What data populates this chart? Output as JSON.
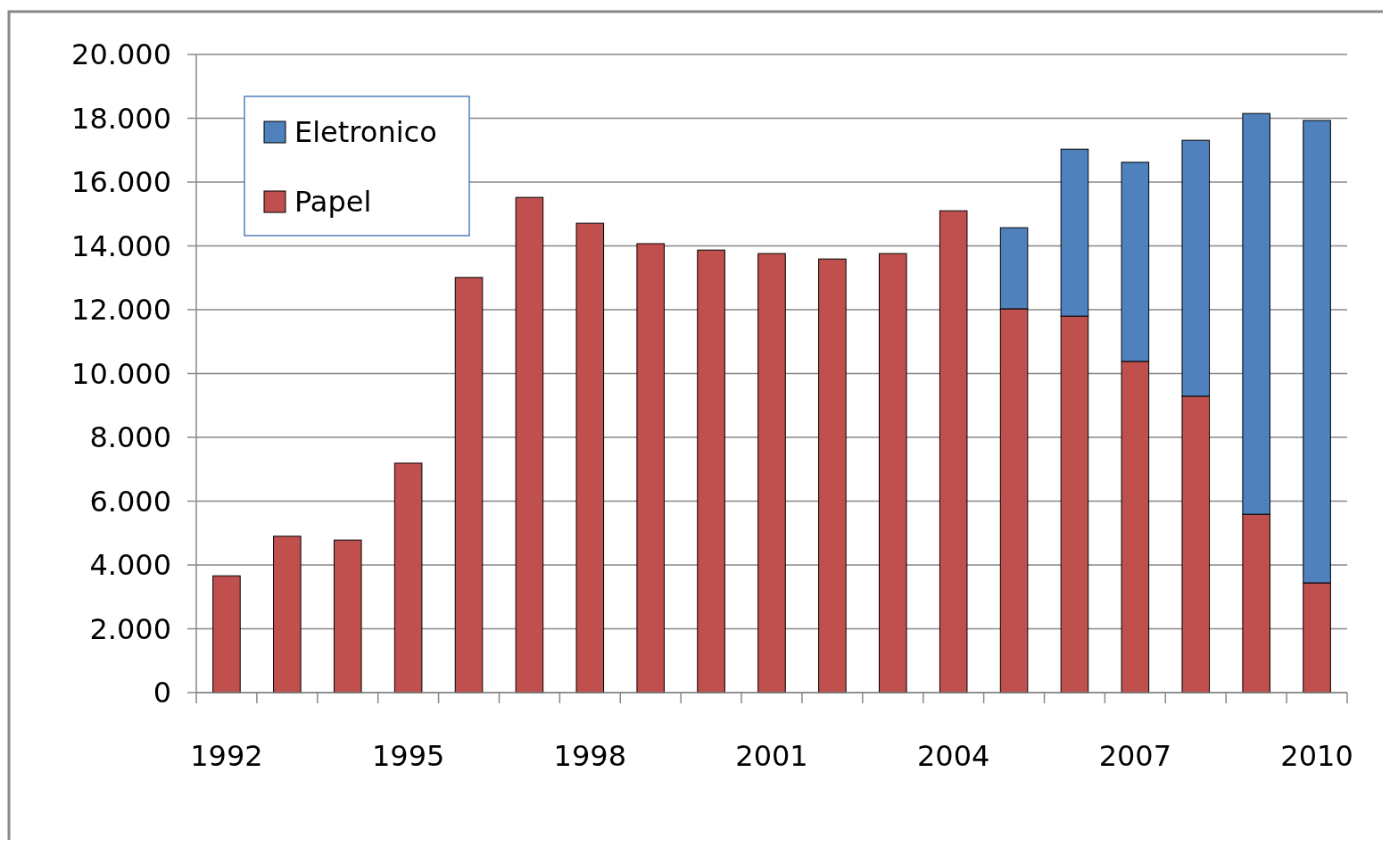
{
  "chart_data": {
    "type": "bar",
    "stacked": true,
    "categories": [
      "1992",
      null,
      null,
      "1995",
      null,
      null,
      "1998",
      null,
      null,
      "2001",
      null,
      null,
      "2004",
      null,
      null,
      "2007",
      null,
      null,
      "2010"
    ],
    "series": [
      {
        "name": "Papel",
        "color": "#c0504d",
        "values": [
          3660,
          4900,
          4780,
          7190,
          13010,
          15520,
          14710,
          14070,
          13870,
          13760,
          13590,
          13760,
          15100,
          12030,
          11800,
          10380,
          9290,
          5590,
          3440
        ]
      },
      {
        "name": "Eletronico",
        "color": "#4f81bd",
        "values": [
          null,
          null,
          null,
          null,
          null,
          null,
          null,
          null,
          null,
          null,
          null,
          null,
          null,
          2540,
          5230,
          6240,
          8020,
          12560,
          14490
        ]
      }
    ],
    "ylim": [
      0,
      20000
    ],
    "yticks": [
      0,
      {
        "value": 2000,
        "label": "2.000"
      },
      {
        "value": 4000,
        "label": "4.000"
      },
      {
        "value": 6000,
        "label": "6.000"
      },
      {
        "value": 8000,
        "label": "8.000"
      },
      {
        "value": 10000,
        "label": "10.000"
      },
      {
        "value": 12000,
        "label": "12.000"
      },
      {
        "value": 14000,
        "label": "14.000"
      },
      {
        "value": 16000,
        "label": "16.000"
      },
      {
        "value": 18000,
        "label": "18.000"
      },
      {
        "value": 20000,
        "label": "20.000"
      }
    ],
    "grid": "y",
    "legend": "top left"
  }
}
